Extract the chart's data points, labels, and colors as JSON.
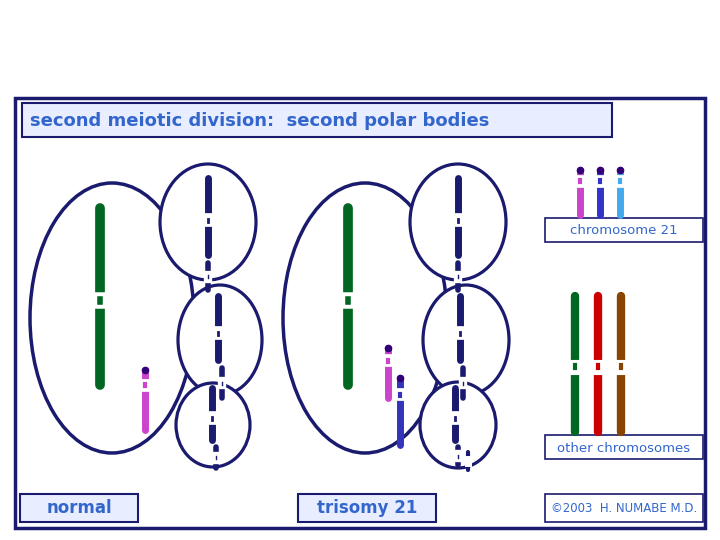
{
  "title": "second meiotic division:  second polar bodies",
  "border_color": "#1a1a6e",
  "title_color": "#3366cc",
  "label_color": "#3366cc",
  "normal_label": "normal",
  "trisomy_label": "trisomy 21",
  "chr21_label": "chromosome 21",
  "other_label": "other chromosomes",
  "copyright": "©2003  H. NUMABE M.D.",
  "chr21_colors": [
    "#cc44cc",
    "#3333cc",
    "#44aaee"
  ],
  "other_colors": [
    "#006622",
    "#cc0000",
    "#884400"
  ],
  "dark_chr_color": "#1a1a6e",
  "green_chr_color": "#006622",
  "magenta_chr_color": "#cc44cc",
  "blue_chr_color": "#3333bb",
  "note_bg": "#e8eeff"
}
